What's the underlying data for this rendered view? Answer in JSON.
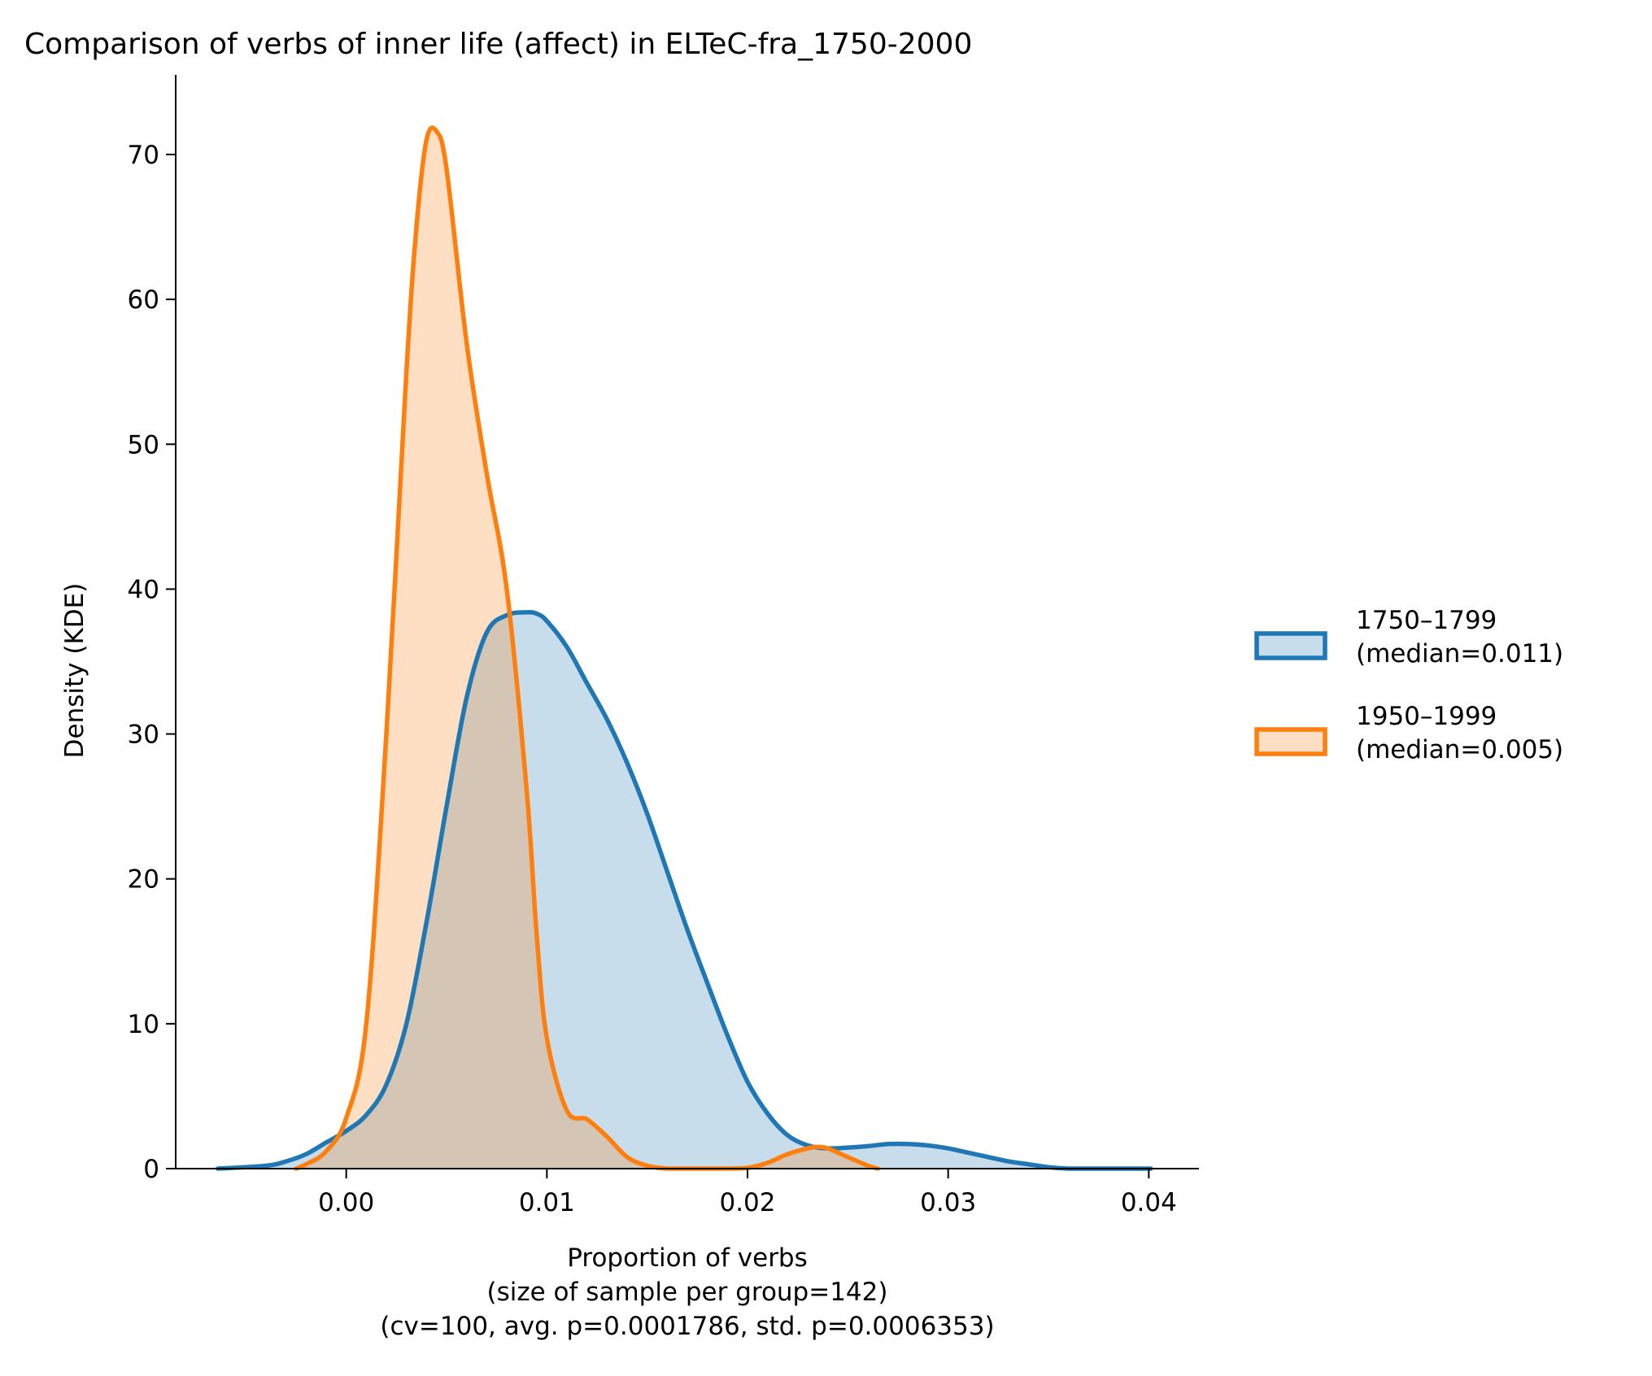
{
  "chart_data": {
    "type": "area",
    "title": "Comparison of verbs of inner life (affect) in ELTeC-fra_1750-2000",
    "xlabel_lines": [
      "Proportion of verbs",
      "(size of sample per group=142)",
      "(cv=100, avg. p=0.0001786, std. p=0.0006353)"
    ],
    "ylabel": "Density (KDE)",
    "xlim": [
      -0.0085,
      0.0425
    ],
    "ylim": [
      0,
      75.5
    ],
    "xticks": [
      0.0,
      0.01,
      0.02,
      0.03,
      0.04
    ],
    "xtick_labels": [
      "0.00",
      "0.01",
      "0.02",
      "0.03",
      "0.04"
    ],
    "yticks": [
      0,
      10,
      20,
      30,
      40,
      50,
      60,
      70
    ],
    "ytick_labels": [
      "0",
      "10",
      "20",
      "30",
      "40",
      "50",
      "60",
      "70"
    ],
    "grid": false,
    "legend_position": "right",
    "series": [
      {
        "name": "1750–1799\n(median=0.011)",
        "name_lines": [
          "1750–1799",
          "(median=0.011)"
        ],
        "color": "#1f77b4",
        "fill": "#c6dbed",
        "x": [
          -0.0064,
          -0.004,
          -0.003,
          -0.002,
          -0.001,
          0.0,
          0.001,
          0.002,
          0.003,
          0.004,
          0.005,
          0.006,
          0.007,
          0.008,
          0.009,
          0.0095,
          0.01,
          0.011,
          0.012,
          0.013,
          0.014,
          0.015,
          0.016,
          0.017,
          0.018,
          0.019,
          0.02,
          0.021,
          0.022,
          0.023,
          0.024,
          0.025,
          0.026,
          0.027,
          0.028,
          0.029,
          0.03,
          0.031,
          0.032,
          0.033,
          0.034,
          0.035,
          0.036,
          0.037,
          0.038,
          0.039,
          0.0401
        ],
        "y": [
          0.0,
          0.2,
          0.5,
          1.0,
          1.8,
          2.6,
          3.7,
          5.8,
          10.0,
          17.0,
          25.0,
          32.5,
          37.0,
          38.2,
          38.4,
          38.3,
          37.8,
          36.0,
          33.5,
          31.0,
          28.0,
          24.5,
          20.5,
          16.5,
          12.8,
          9.2,
          6.0,
          3.8,
          2.3,
          1.6,
          1.4,
          1.45,
          1.55,
          1.7,
          1.7,
          1.6,
          1.4,
          1.1,
          0.8,
          0.5,
          0.3,
          0.1,
          0.0,
          0.0,
          0.0,
          0.0,
          0.0
        ]
      },
      {
        "name": "1950–1999\n(median=0.005)",
        "name_lines": [
          "1950–1999",
          "(median=0.005)"
        ],
        "color": "#ff7f0e",
        "fill": "#fddbbe",
        "x": [
          -0.0025,
          -0.002,
          -0.001,
          0.0,
          0.001,
          0.002,
          0.003,
          0.0035,
          0.004,
          0.0045,
          0.005,
          0.006,
          0.007,
          0.008,
          0.009,
          0.0095,
          0.01,
          0.011,
          0.012,
          0.013,
          0.014,
          0.015,
          0.016,
          0.017,
          0.018,
          0.019,
          0.02,
          0.021,
          0.022,
          0.023,
          0.0235,
          0.024,
          0.025,
          0.026,
          0.0265
        ],
        "y": [
          0.0,
          0.3,
          1.2,
          3.5,
          10.0,
          30.0,
          55.0,
          65.0,
          71.0,
          71.6,
          69.0,
          57.0,
          48.0,
          40.0,
          26.0,
          16.0,
          9.0,
          4.0,
          3.4,
          2.2,
          0.8,
          0.2,
          0.0,
          0.0,
          0.0,
          0.0,
          0.05,
          0.4,
          1.0,
          1.4,
          1.5,
          1.4,
          0.8,
          0.2,
          0.0
        ]
      }
    ]
  }
}
